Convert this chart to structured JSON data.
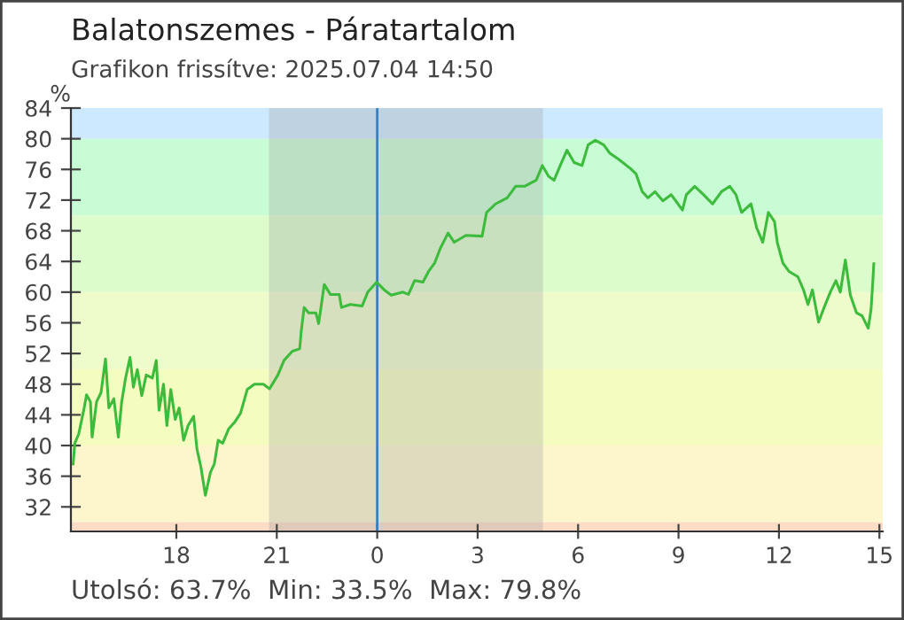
{
  "chart_data": {
    "type": "line",
    "title": "Balatonszemes - Páratartalom",
    "subtitle": "Grafikon frissítve: 2025.07.04 14:50",
    "ylabel": "%",
    "annotations": [
      "Utolsó: 63.7%  Min: 33.5%  Max: 79.8%"
    ],
    "xlim": [
      "2025-07-03T14:51",
      "2025-07-04T15:06"
    ],
    "xticks": [
      {
        "value": "2025-07-03T18:00",
        "label": "18"
      },
      {
        "value": "2025-07-03T21:00",
        "label": "21"
      },
      {
        "value": "2025-07-04T00:00",
        "label": "0"
      },
      {
        "value": "2025-07-04T03:00",
        "label": "3"
      },
      {
        "value": "2025-07-04T06:00",
        "label": "6"
      },
      {
        "value": "2025-07-04T09:00",
        "label": "9"
      },
      {
        "value": "2025-07-04T12:00",
        "label": "12"
      },
      {
        "value": "2025-07-04T15:00",
        "label": "15"
      }
    ],
    "ylim": [
      28.8,
      84
    ],
    "yticks": [
      32,
      36,
      40,
      44,
      48,
      52,
      56,
      60,
      64,
      68,
      72,
      76,
      80,
      84
    ],
    "grid": false,
    "legend": false,
    "bands": [
      {
        "axis": "y",
        "from": 80,
        "to": 84,
        "color": "#cce9ff"
      },
      {
        "axis": "y",
        "from": 70,
        "to": 80,
        "color": "#c8fcd4"
      },
      {
        "axis": "y",
        "from": 60,
        "to": 70,
        "color": "#dcfccc"
      },
      {
        "axis": "y",
        "from": 50,
        "to": 60,
        "color": "#eefccc"
      },
      {
        "axis": "y",
        "from": 40,
        "to": 50,
        "color": "#f5fcc0"
      },
      {
        "axis": "y",
        "from": 30,
        "to": 40,
        "color": "#fdf5cc"
      },
      {
        "axis": "y",
        "from": 28.8,
        "to": 30,
        "color": "#fcdcc4"
      },
      {
        "axis": "x",
        "from": "2025-07-03T20:46",
        "to": "2025-07-04T04:57",
        "color": "#a0a0a0"
      }
    ],
    "ref_lines": [
      {
        "axis": "x",
        "value": "2025-07-04T00:00",
        "color": "#3a7fc0",
        "line_style": "solid"
      }
    ],
    "series": [
      {
        "color": "#3cbb3c",
        "x": [
          "2025-07-03T14:55",
          "2025-07-03T14:58",
          "2025-07-03T15:05",
          "2025-07-03T15:14",
          "2025-07-03T15:19",
          "2025-07-03T15:26",
          "2025-07-03T15:29",
          "2025-07-03T15:37",
          "2025-07-03T15:45",
          "2025-07-03T15:53",
          "2025-07-03T15:59",
          "2025-07-03T16:08",
          "2025-07-03T16:16",
          "2025-07-03T16:22",
          "2025-07-03T16:29",
          "2025-07-03T16:37",
          "2025-07-03T16:43",
          "2025-07-03T16:50",
          "2025-07-03T16:58",
          "2025-07-03T17:06",
          "2025-07-03T17:17",
          "2025-07-03T17:24",
          "2025-07-03T17:29",
          "2025-07-03T17:37",
          "2025-07-03T17:43",
          "2025-07-03T17:50",
          "2025-07-03T17:58",
          "2025-07-03T18:05",
          "2025-07-03T18:13",
          "2025-07-03T18:21",
          "2025-07-03T18:31",
          "2025-07-03T18:37",
          "2025-07-03T18:44",
          "2025-07-03T18:52",
          "2025-07-03T19:01",
          "2025-07-03T19:08",
          "2025-07-03T19:15",
          "2025-07-03T19:23",
          "2025-07-03T19:34",
          "2025-07-03T19:44",
          "2025-07-03T19:55",
          "2025-07-03T20:07",
          "2025-07-03T20:20",
          "2025-07-03T20:36",
          "2025-07-03T20:47",
          "2025-07-03T21:02",
          "2025-07-03T21:13",
          "2025-07-03T21:28",
          "2025-07-03T21:41",
          "2025-07-03T21:44",
          "2025-07-03T21:49",
          "2025-07-03T21:57",
          "2025-07-03T22:10",
          "2025-07-03T22:15",
          "2025-07-03T22:20",
          "2025-07-03T22:25",
          "2025-07-03T22:36",
          "2025-07-03T22:52",
          "2025-07-03T22:56",
          "2025-07-03T23:12",
          "2025-07-03T23:33",
          "2025-07-03T23:43",
          "2025-07-03T23:59",
          "2025-07-04T00:14",
          "2025-07-04T00:25",
          "2025-07-04T00:46",
          "2025-07-04T00:56",
          "2025-07-04T01:07",
          "2025-07-04T01:22",
          "2025-07-04T01:32",
          "2025-07-04T01:43",
          "2025-07-04T01:53",
          "2025-07-04T02:07",
          "2025-07-04T02:18",
          "2025-07-04T02:39",
          "2025-07-04T03:08",
          "2025-07-04T03:16",
          "2025-07-04T03:32",
          "2025-07-04T03:53",
          "2025-07-04T04:08",
          "2025-07-04T04:24",
          "2025-07-04T04:45",
          "2025-07-04T04:56",
          "2025-07-04T05:07",
          "2025-07-04T05:17",
          "2025-07-04T05:28",
          "2025-07-04T05:40",
          "2025-07-04T05:53",
          "2025-07-04T06:07",
          "2025-07-04T06:18",
          "2025-07-04T06:31",
          "2025-07-04T06:46",
          "2025-07-04T06:57",
          "2025-07-04T07:13",
          "2025-07-04T07:34",
          "2025-07-04T07:44",
          "2025-07-04T07:55",
          "2025-07-04T08:05",
          "2025-07-04T08:18",
          "2025-07-04T08:32",
          "2025-07-04T08:47",
          "2025-07-04T09:07",
          "2025-07-04T09:14",
          "2025-07-04T09:29",
          "2025-07-04T09:45",
          "2025-07-04T10:01",
          "2025-07-04T10:17",
          "2025-07-04T10:32",
          "2025-07-04T10:43",
          "2025-07-04T10:53",
          "2025-07-04T11:10",
          "2025-07-04T11:20",
          "2025-07-04T11:31",
          "2025-07-04T11:41",
          "2025-07-04T11:52",
          "2025-07-04T11:57",
          "2025-07-04T12:07",
          "2025-07-04T12:18",
          "2025-07-04T12:34",
          "2025-07-04T12:44",
          "2025-07-04T12:52",
          "2025-07-04T13:00",
          "2025-07-04T13:11",
          "2025-07-04T13:21",
          "2025-07-04T13:32",
          "2025-07-04T13:42",
          "2025-07-04T13:50",
          "2025-07-04T13:59",
          "2025-07-04T14:08",
          "2025-07-04T14:19",
          "2025-07-04T14:29",
          "2025-07-04T14:40",
          "2025-07-04T14:45",
          "2025-07-04T14:48",
          "2025-07-04T14:50"
        ],
        "values": [
          37.6,
          40.3,
          41.5,
          44.6,
          46.6,
          45.7,
          41.1,
          45.7,
          46.9,
          51.3,
          44.9,
          46.1,
          41.1,
          45.7,
          48.8,
          51.5,
          47.6,
          49.9,
          46.5,
          49.2,
          48.8,
          51.1,
          44.6,
          48.0,
          42.6,
          47.3,
          43.4,
          44.9,
          40.7,
          42.6,
          43.8,
          39.5,
          37.2,
          33.5,
          36.5,
          37.6,
          40.7,
          40.3,
          42.2,
          43.0,
          44.2,
          47.3,
          48.0,
          48.0,
          47.4,
          49.2,
          51.1,
          52.3,
          52.6,
          55.0,
          58.0,
          57.3,
          57.3,
          55.9,
          58.4,
          61.0,
          59.7,
          59.7,
          58.0,
          58.4,
          58.2,
          60.0,
          61.3,
          60.2,
          59.6,
          60.0,
          59.7,
          61.5,
          61.3,
          62.7,
          63.8,
          65.7,
          67.7,
          66.5,
          67.4,
          67.3,
          70.4,
          71.5,
          72.3,
          73.8,
          73.8,
          74.6,
          76.5,
          75.1,
          74.6,
          76.5,
          78.5,
          76.9,
          76.5,
          79.2,
          79.8,
          79.2,
          78.1,
          77.3,
          76.1,
          75.4,
          73.1,
          72.3,
          73.1,
          71.9,
          72.7,
          70.7,
          72.7,
          73.8,
          72.7,
          71.5,
          73.1,
          73.8,
          72.7,
          70.4,
          71.5,
          68.4,
          66.5,
          70.4,
          69.2,
          66.5,
          63.8,
          62.7,
          62.0,
          60.3,
          58.4,
          60.3,
          56.1,
          58.0,
          60.0,
          61.5,
          60.0,
          64.2,
          59.6,
          57.3,
          56.9,
          55.3,
          57.7,
          61.1,
          63.7
        ]
      }
    ]
  }
}
